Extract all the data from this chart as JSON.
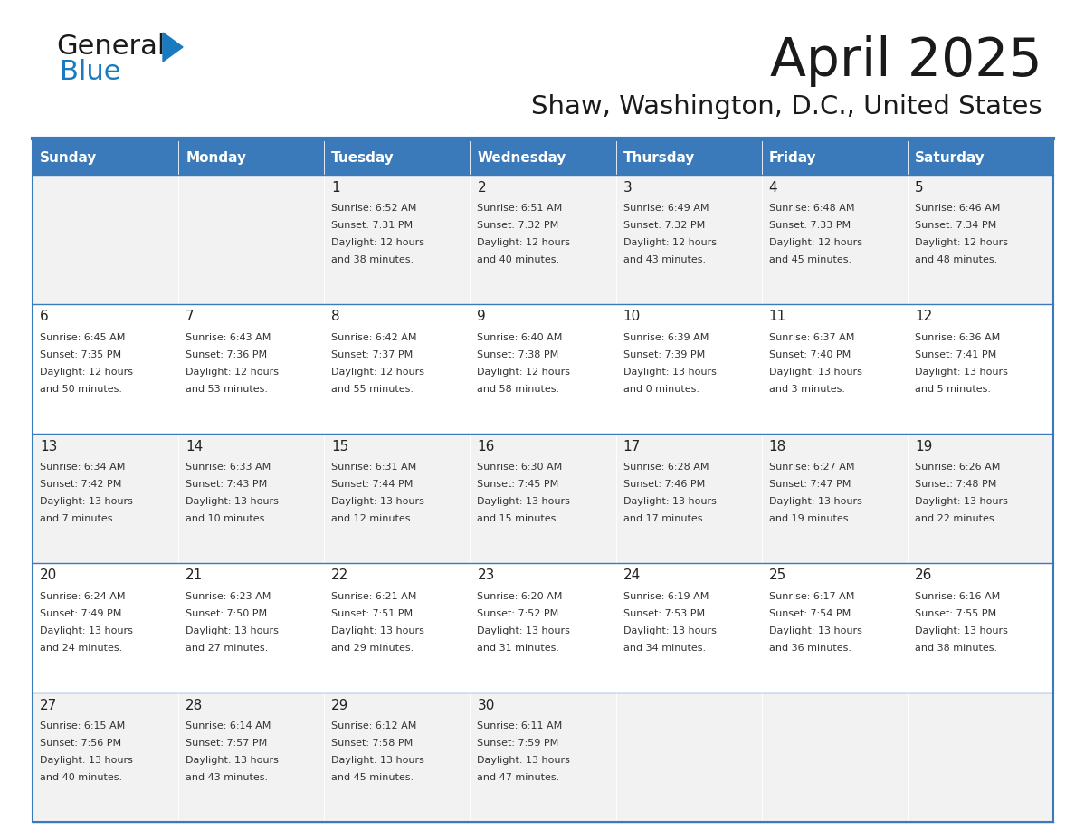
{
  "title": "April 2025",
  "subtitle": "Shaw, Washington, D.C., United States",
  "header_bg": "#3a7aba",
  "header_text": "#ffffff",
  "days_of_week": [
    "Sunday",
    "Monday",
    "Tuesday",
    "Wednesday",
    "Thursday",
    "Friday",
    "Saturday"
  ],
  "row_bg_odd": "#f2f2f2",
  "row_bg_even": "#ffffff",
  "cell_text_color": "#333333",
  "day_num_color": "#222222",
  "border_color": "#3a7aba",
  "calendar": [
    [
      {
        "day": null,
        "info": null
      },
      {
        "day": null,
        "info": null
      },
      {
        "day": 1,
        "info": "Sunrise: 6:52 AM\nSunset: 7:31 PM\nDaylight: 12 hours\nand 38 minutes."
      },
      {
        "day": 2,
        "info": "Sunrise: 6:51 AM\nSunset: 7:32 PM\nDaylight: 12 hours\nand 40 minutes."
      },
      {
        "day": 3,
        "info": "Sunrise: 6:49 AM\nSunset: 7:32 PM\nDaylight: 12 hours\nand 43 minutes."
      },
      {
        "day": 4,
        "info": "Sunrise: 6:48 AM\nSunset: 7:33 PM\nDaylight: 12 hours\nand 45 minutes."
      },
      {
        "day": 5,
        "info": "Sunrise: 6:46 AM\nSunset: 7:34 PM\nDaylight: 12 hours\nand 48 minutes."
      }
    ],
    [
      {
        "day": 6,
        "info": "Sunrise: 6:45 AM\nSunset: 7:35 PM\nDaylight: 12 hours\nand 50 minutes."
      },
      {
        "day": 7,
        "info": "Sunrise: 6:43 AM\nSunset: 7:36 PM\nDaylight: 12 hours\nand 53 minutes."
      },
      {
        "day": 8,
        "info": "Sunrise: 6:42 AM\nSunset: 7:37 PM\nDaylight: 12 hours\nand 55 minutes."
      },
      {
        "day": 9,
        "info": "Sunrise: 6:40 AM\nSunset: 7:38 PM\nDaylight: 12 hours\nand 58 minutes."
      },
      {
        "day": 10,
        "info": "Sunrise: 6:39 AM\nSunset: 7:39 PM\nDaylight: 13 hours\nand 0 minutes."
      },
      {
        "day": 11,
        "info": "Sunrise: 6:37 AM\nSunset: 7:40 PM\nDaylight: 13 hours\nand 3 minutes."
      },
      {
        "day": 12,
        "info": "Sunrise: 6:36 AM\nSunset: 7:41 PM\nDaylight: 13 hours\nand 5 minutes."
      }
    ],
    [
      {
        "day": 13,
        "info": "Sunrise: 6:34 AM\nSunset: 7:42 PM\nDaylight: 13 hours\nand 7 minutes."
      },
      {
        "day": 14,
        "info": "Sunrise: 6:33 AM\nSunset: 7:43 PM\nDaylight: 13 hours\nand 10 minutes."
      },
      {
        "day": 15,
        "info": "Sunrise: 6:31 AM\nSunset: 7:44 PM\nDaylight: 13 hours\nand 12 minutes."
      },
      {
        "day": 16,
        "info": "Sunrise: 6:30 AM\nSunset: 7:45 PM\nDaylight: 13 hours\nand 15 minutes."
      },
      {
        "day": 17,
        "info": "Sunrise: 6:28 AM\nSunset: 7:46 PM\nDaylight: 13 hours\nand 17 minutes."
      },
      {
        "day": 18,
        "info": "Sunrise: 6:27 AM\nSunset: 7:47 PM\nDaylight: 13 hours\nand 19 minutes."
      },
      {
        "day": 19,
        "info": "Sunrise: 6:26 AM\nSunset: 7:48 PM\nDaylight: 13 hours\nand 22 minutes."
      }
    ],
    [
      {
        "day": 20,
        "info": "Sunrise: 6:24 AM\nSunset: 7:49 PM\nDaylight: 13 hours\nand 24 minutes."
      },
      {
        "day": 21,
        "info": "Sunrise: 6:23 AM\nSunset: 7:50 PM\nDaylight: 13 hours\nand 27 minutes."
      },
      {
        "day": 22,
        "info": "Sunrise: 6:21 AM\nSunset: 7:51 PM\nDaylight: 13 hours\nand 29 minutes."
      },
      {
        "day": 23,
        "info": "Sunrise: 6:20 AM\nSunset: 7:52 PM\nDaylight: 13 hours\nand 31 minutes."
      },
      {
        "day": 24,
        "info": "Sunrise: 6:19 AM\nSunset: 7:53 PM\nDaylight: 13 hours\nand 34 minutes."
      },
      {
        "day": 25,
        "info": "Sunrise: 6:17 AM\nSunset: 7:54 PM\nDaylight: 13 hours\nand 36 minutes."
      },
      {
        "day": 26,
        "info": "Sunrise: 6:16 AM\nSunset: 7:55 PM\nDaylight: 13 hours\nand 38 minutes."
      }
    ],
    [
      {
        "day": 27,
        "info": "Sunrise: 6:15 AM\nSunset: 7:56 PM\nDaylight: 13 hours\nand 40 minutes."
      },
      {
        "day": 28,
        "info": "Sunrise: 6:14 AM\nSunset: 7:57 PM\nDaylight: 13 hours\nand 43 minutes."
      },
      {
        "day": 29,
        "info": "Sunrise: 6:12 AM\nSunset: 7:58 PM\nDaylight: 13 hours\nand 45 minutes."
      },
      {
        "day": 30,
        "info": "Sunrise: 6:11 AM\nSunset: 7:59 PM\nDaylight: 13 hours\nand 47 minutes."
      },
      {
        "day": null,
        "info": null
      },
      {
        "day": null,
        "info": null
      },
      {
        "day": null,
        "info": null
      }
    ]
  ],
  "fig_width": 11.88,
  "fig_height": 9.18,
  "logo_color_general": "#1a1a1a",
  "logo_color_blue": "#1a7abf",
  "logo_triangle_color": "#1a7abf"
}
